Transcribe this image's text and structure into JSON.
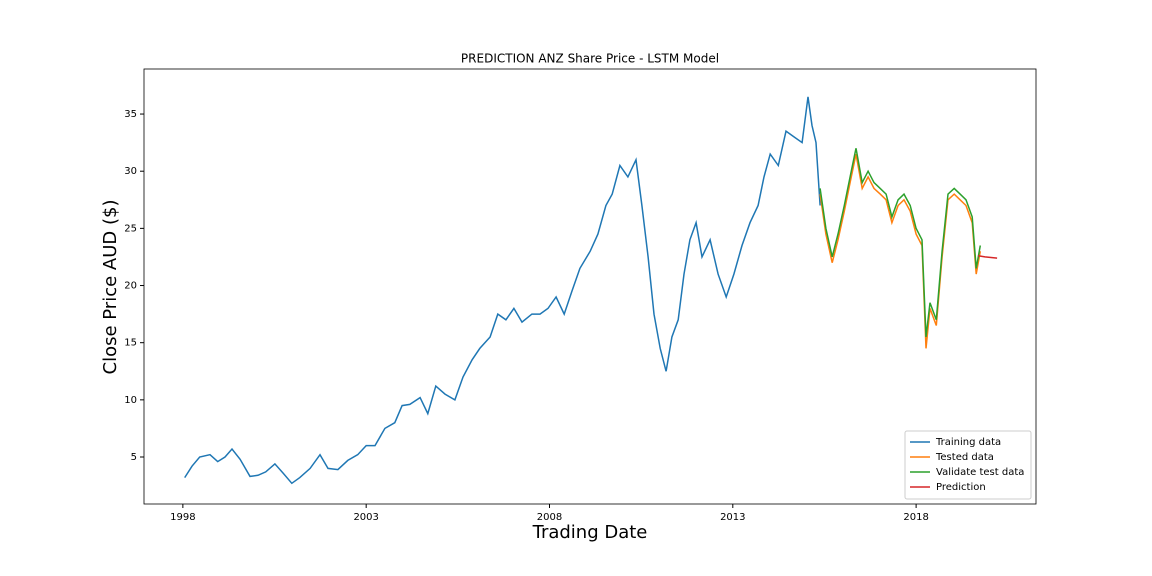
{
  "chart_data": {
    "type": "line",
    "title": "PREDICTION ANZ Share Price - LSTM Model",
    "x_label": "Trading Date",
    "y_label": "Close Price AUD ($)",
    "xlim": [
      1996.94,
      2021.27
    ],
    "xticks": [
      1998,
      2003,
      2008,
      2013,
      2018
    ],
    "ylim": [
      0.89,
      38.94
    ],
    "yticks": [
      5,
      10,
      15,
      20,
      25,
      30,
      35
    ],
    "legend": "lower right",
    "grid": false,
    "series": [
      {
        "name": "Training data",
        "color": "#1f77b4",
        "x": [
          1998.05,
          1998.25,
          1998.46,
          1998.74,
          1998.95,
          1999.15,
          1999.34,
          1999.56,
          1999.83,
          2000.05,
          2000.26,
          2000.51,
          2000.73,
          2000.97,
          2001.19,
          2001.47,
          2001.74,
          2001.96,
          2002.23,
          2002.5,
          2002.77,
          2003.0,
          2003.24,
          2003.51,
          2003.78,
          2003.98,
          2004.19,
          2004.47,
          2004.68,
          2004.9,
          2005.15,
          2005.42,
          2005.64,
          2005.89,
          2006.1,
          2006.38,
          2006.59,
          2006.81,
          2007.03,
          2007.25,
          2007.52,
          2007.74,
          2007.96,
          2008.18,
          2008.4,
          2008.61,
          2008.83,
          2009.11,
          2009.32,
          2009.54,
          2009.71,
          2009.92,
          2010.14,
          2010.36,
          2010.52,
          2010.69,
          2010.85,
          2011.02,
          2011.18,
          2011.34,
          2011.51,
          2011.67,
          2011.83,
          2012.0,
          2012.16,
          2012.38,
          2012.6,
          2012.82,
          2013.03,
          2013.25,
          2013.47,
          2013.69,
          2013.85,
          2014.02,
          2014.24,
          2014.45,
          2014.67,
          2014.89,
          2015.05,
          2015.16,
          2015.27,
          2015.38
        ],
        "values": [
          3.2,
          4.2,
          5.0,
          5.2,
          4.6,
          5.0,
          5.7,
          4.8,
          3.3,
          3.4,
          3.7,
          4.4,
          3.6,
          2.7,
          3.2,
          4.0,
          5.2,
          4.0,
          3.9,
          4.7,
          5.2,
          6.0,
          6.0,
          7.5,
          8.0,
          9.5,
          9.6,
          10.2,
          8.8,
          11.2,
          10.5,
          10.0,
          12.0,
          13.5,
          14.5,
          15.5,
          17.5,
          17.0,
          18.0,
          16.8,
          17.5,
          17.5,
          18.0,
          19.0,
          17.5,
          19.5,
          21.5,
          23.0,
          24.5,
          27.0,
          28.0,
          30.5,
          29.5,
          31.0,
          27.0,
          22.5,
          17.5,
          14.5,
          12.5,
          15.5,
          17.0,
          21.0,
          24.0,
          25.5,
          22.5,
          24.0,
          21.0,
          19.0,
          21.0,
          23.5,
          25.5,
          27.0,
          29.5,
          31.5,
          30.5,
          33.5,
          33.0,
          32.5,
          36.5,
          34.0,
          32.5,
          27.0
        ]
      },
      {
        "name": "Tested data",
        "color": "#ff7f0e",
        "x": [
          2015.38,
          2015.54,
          2015.71,
          2015.87,
          2016.04,
          2016.2,
          2016.36,
          2016.53,
          2016.69,
          2016.85,
          2017.02,
          2017.18,
          2017.34,
          2017.51,
          2017.67,
          2017.84,
          2018.0,
          2018.16,
          2018.27,
          2018.38,
          2018.55,
          2018.71,
          2018.87,
          2019.04,
          2019.2,
          2019.36,
          2019.53,
          2019.64,
          2019.75
        ],
        "values": [
          28.0,
          24.5,
          22.0,
          24.0,
          26.5,
          29.0,
          31.5,
          28.5,
          29.5,
          28.5,
          28.0,
          27.5,
          25.5,
          27.0,
          27.5,
          26.5,
          24.5,
          23.5,
          14.5,
          18.0,
          16.5,
          22.5,
          27.5,
          28.0,
          27.5,
          27.0,
          25.5,
          21.0,
          23.0
        ]
      },
      {
        "name": "Validate test data",
        "color": "#2ca02c",
        "x": [
          2015.38,
          2015.54,
          2015.71,
          2015.87,
          2016.04,
          2016.2,
          2016.36,
          2016.53,
          2016.69,
          2016.85,
          2017.02,
          2017.18,
          2017.34,
          2017.51,
          2017.67,
          2017.84,
          2018.0,
          2018.16,
          2018.27,
          2018.38,
          2018.55,
          2018.71,
          2018.87,
          2019.04,
          2019.2,
          2019.36,
          2019.53,
          2019.64,
          2019.75
        ],
        "values": [
          28.5,
          25.0,
          22.5,
          24.5,
          27.0,
          29.5,
          32.0,
          29.0,
          30.0,
          29.0,
          28.5,
          28.0,
          26.0,
          27.5,
          28.0,
          27.0,
          25.0,
          24.0,
          15.5,
          18.5,
          17.0,
          23.0,
          28.0,
          28.5,
          28.0,
          27.5,
          26.0,
          21.5,
          23.5
        ]
      },
      {
        "name": "Prediction",
        "color": "#d62728",
        "x": [
          2019.69,
          2019.88,
          2020.21
        ],
        "values": [
          22.6,
          22.5,
          22.4
        ]
      }
    ]
  }
}
